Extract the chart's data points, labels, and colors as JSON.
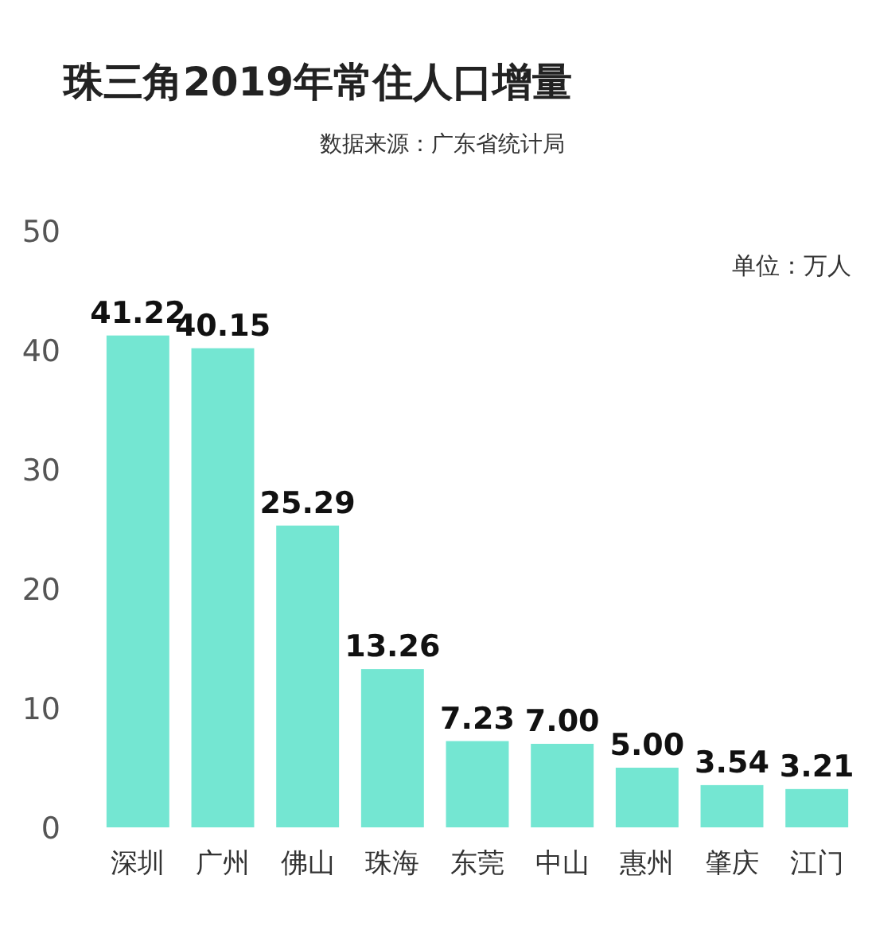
{
  "chart_data": {
    "type": "bar",
    "title": "珠三角2019年常住人口增量",
    "annotations": [
      "数据来源：广东省统计局",
      "单位：万人"
    ],
    "categories": [
      "深圳",
      "广州",
      "佛山",
      "珠海",
      "东莞",
      "中山",
      "惠州",
      "肇庆",
      "江门"
    ],
    "values": [
      41.22,
      40.15,
      25.29,
      13.26,
      7.23,
      7.0,
      5.0,
      3.54,
      3.21
    ],
    "value_labels": [
      "41.22",
      "40.15",
      "25.29",
      "13.26",
      "7.23",
      "7.00",
      "5.00",
      "3.54",
      "3.21"
    ],
    "color": "#74e6d2",
    "ylim": [
      0,
      50
    ],
    "yticks": [
      0,
      10,
      20,
      30,
      40,
      50
    ],
    "grid": false
  }
}
